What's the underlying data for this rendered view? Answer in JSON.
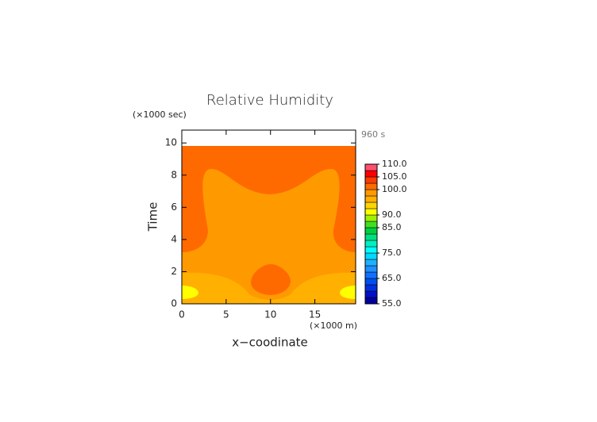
{
  "chart_data": {
    "type": "contour",
    "title": "Relative Humidity",
    "x_label": "x−coodinate",
    "y_label": "Time",
    "x_unit": "(×1000 m)",
    "y_unit": "(×1000 sec)",
    "annotation": "960 s",
    "xlim": [
      0,
      19.6
    ],
    "ylim": [
      0,
      10.8
    ],
    "xticks": [
      0,
      5,
      10,
      15
    ],
    "yticks": [
      0,
      2,
      4,
      6,
      8,
      10
    ],
    "colorbar": {
      "lim": [
        55,
        110
      ],
      "bounds": [
        55,
        57.5,
        60,
        62.5,
        65,
        67.5,
        70,
        72.5,
        75,
        77.5,
        80,
        82.5,
        85,
        87.5,
        90,
        92.5,
        95,
        97.5,
        100,
        102.5,
        105,
        107.5,
        110
      ],
      "colors": [
        "#0000a0",
        "#0010c8",
        "#0030e0",
        "#0050f0",
        "#1070ff",
        "#2090ff",
        "#20b0ff",
        "#00d8ff",
        "#00ffff",
        "#00f0c0",
        "#00e080",
        "#00d040",
        "#40e020",
        "#a0f000",
        "#ffff00",
        "#ffd400",
        "#ffb000",
        "#ff9900",
        "#ff6a00",
        "#ff3c00",
        "#ff0000",
        "#ff5070",
        "#ffa0b0"
      ],
      "ticks": [
        {
          "value": 55,
          "label": "55.0"
        },
        {
          "value": 65,
          "label": "65.0"
        },
        {
          "value": 75,
          "label": "75.0"
        },
        {
          "value": 85,
          "label": "85.0"
        },
        {
          "value": 90,
          "label": "90.0"
        },
        {
          "value": 100,
          "label": "100.0"
        },
        {
          "value": 105,
          "label": "105.0"
        },
        {
          "value": 110,
          "label": "110.0"
        }
      ]
    }
  }
}
